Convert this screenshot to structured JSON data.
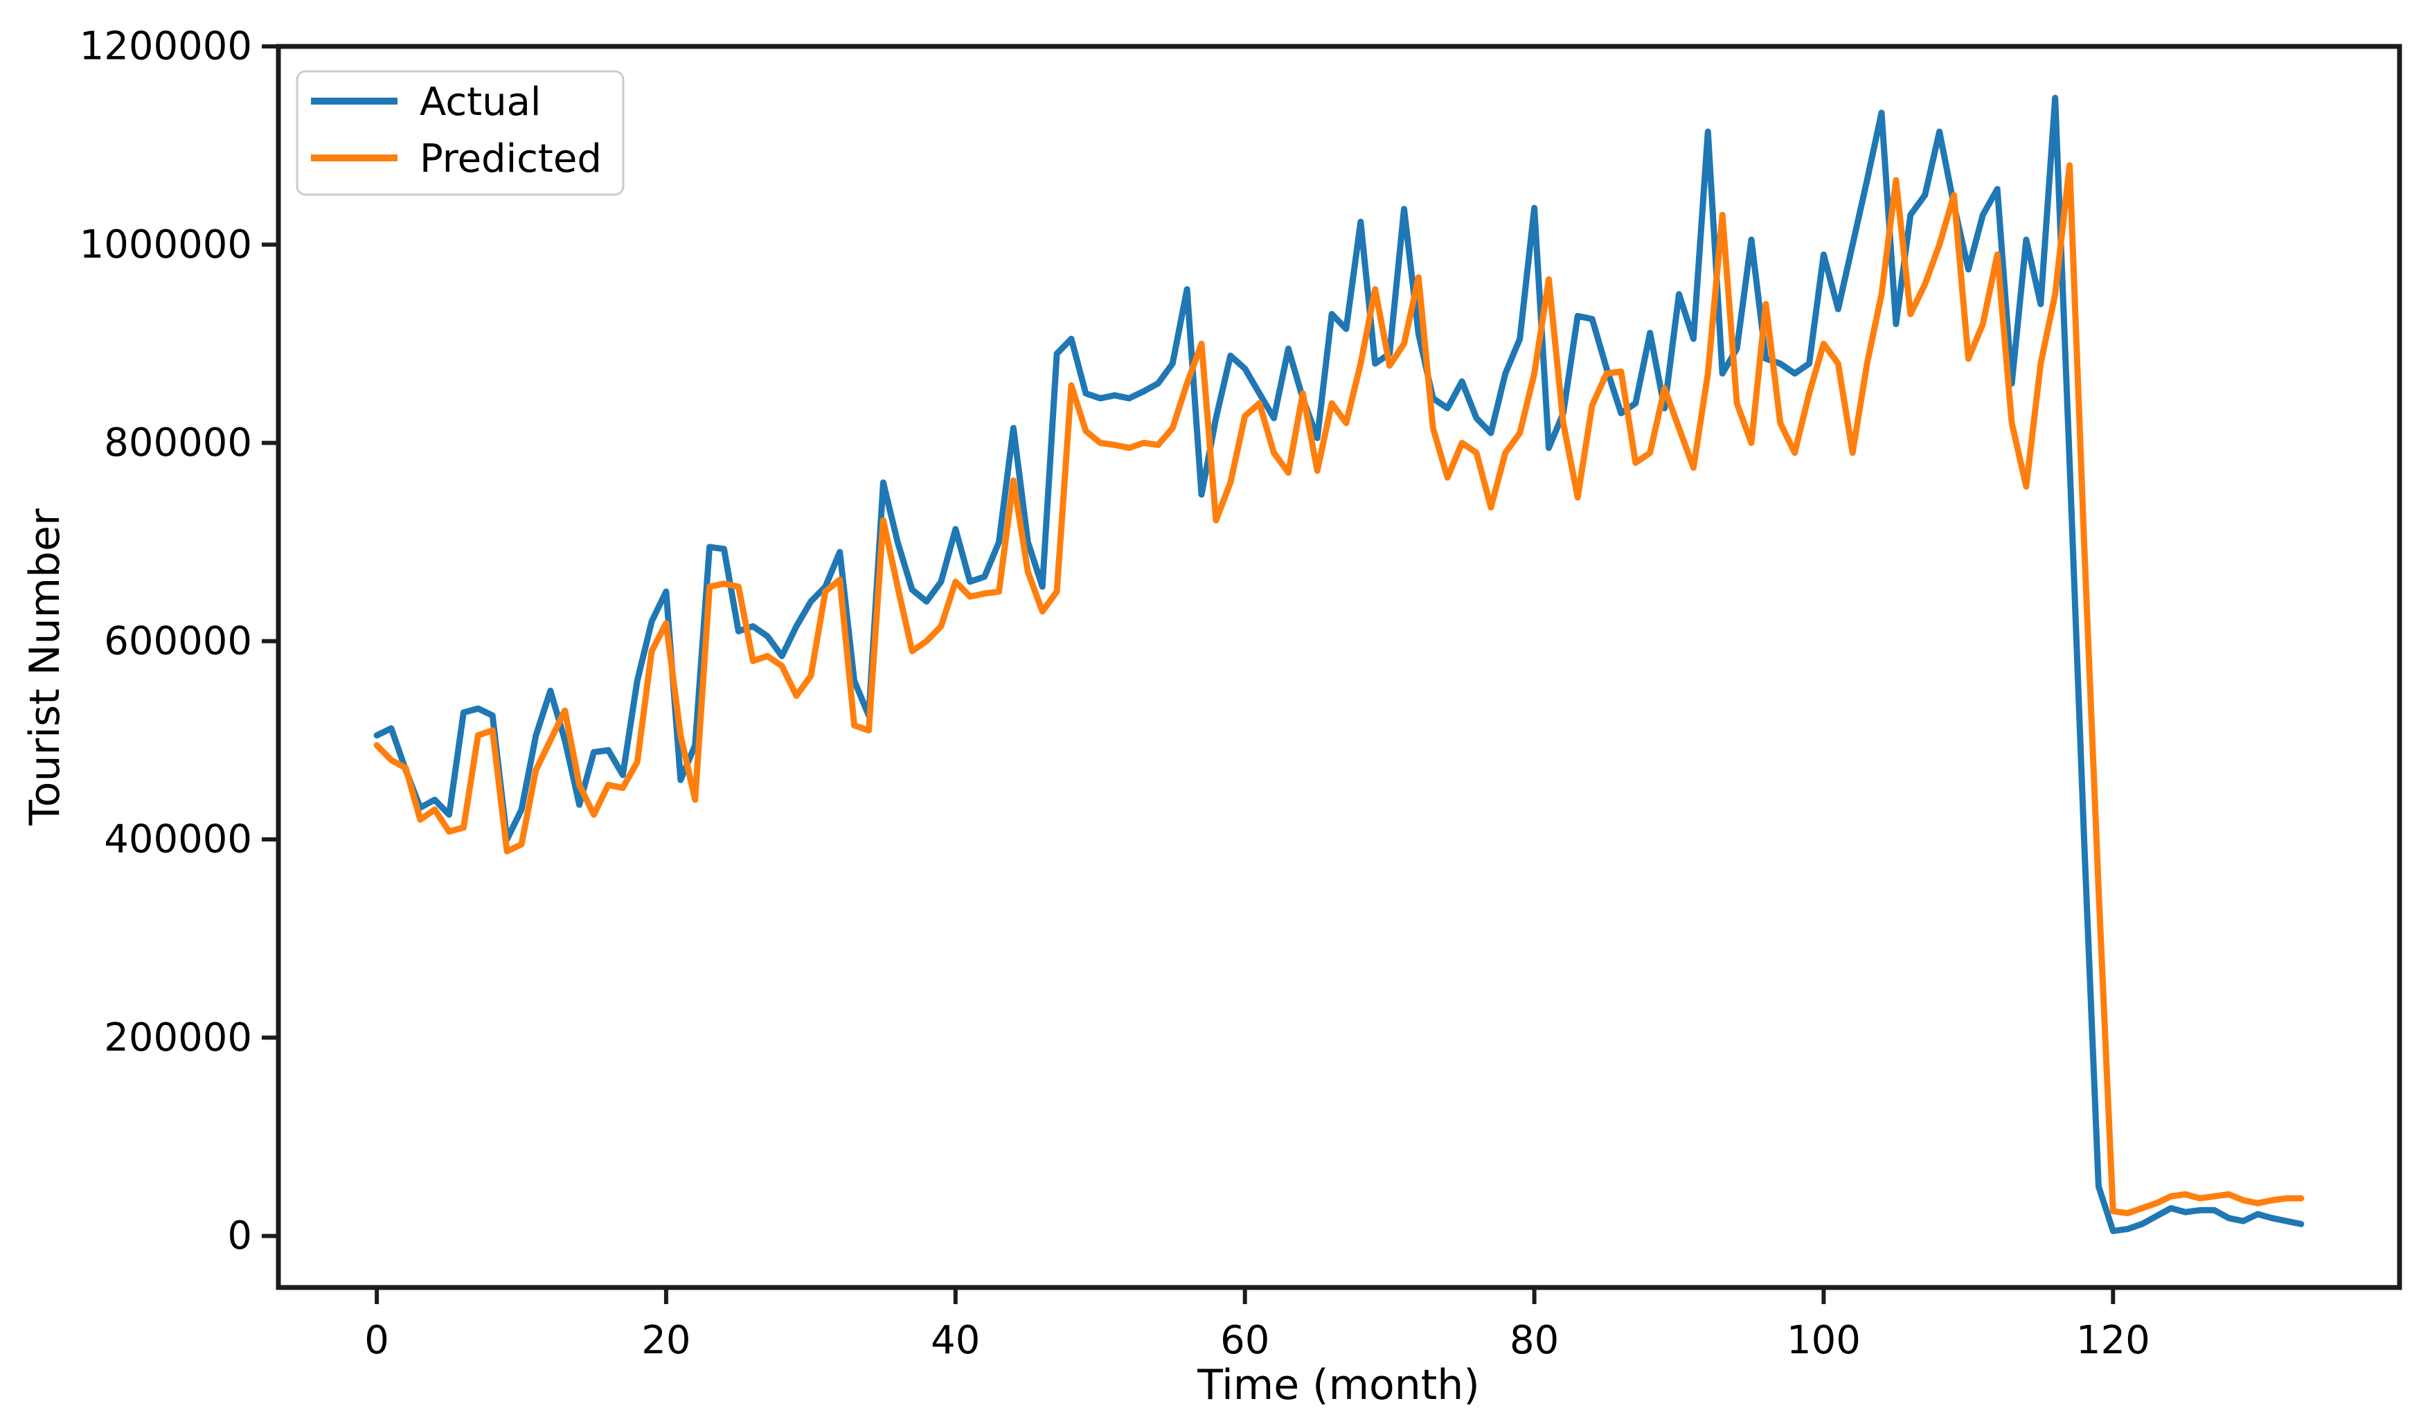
{
  "chart_data": {
    "type": "line",
    "title": "",
    "xlabel": "Time (month)",
    "ylabel": "Tourist Number",
    "xlim": [
      -6.8,
      139.8
    ],
    "ylim": [
      -52000,
      1200000
    ],
    "x_ticks": [
      0,
      20,
      40,
      60,
      80,
      100,
      120
    ],
    "y_ticks": [
      0,
      200000,
      400000,
      600000,
      800000,
      1000000,
      1200000
    ],
    "grid": false,
    "legend_position": "upper left",
    "axis_color": "#1c1c1c",
    "legend_border_color": "#cccccc",
    "x": "months 0-133, step 1",
    "series": [
      {
        "name": "Actual",
        "color": "#1f77b4",
        "values": [
          505000,
          512000,
          470000,
          432000,
          440000,
          425000,
          528000,
          532000,
          525000,
          400000,
          430000,
          505000,
          550000,
          500000,
          435000,
          488000,
          490000,
          465000,
          560000,
          620000,
          650000,
          460000,
          495000,
          695000,
          693000,
          610000,
          615000,
          605000,
          585000,
          615000,
          640000,
          655000,
          690000,
          560000,
          525000,
          760000,
          700000,
          652000,
          640000,
          660000,
          713000,
          660000,
          665000,
          700000,
          815000,
          700000,
          655000,
          890000,
          905000,
          850000,
          845000,
          848000,
          845000,
          852000,
          860000,
          880000,
          955000,
          748000,
          825000,
          888000,
          875000,
          850000,
          825000,
          895000,
          845000,
          805000,
          930000,
          915000,
          1023000,
          880000,
          890000,
          1036000,
          910000,
          845000,
          835000,
          862000,
          825000,
          810000,
          870000,
          905000,
          1037000,
          795000,
          830000,
          928000,
          925000,
          875000,
          830000,
          840000,
          911000,
          835000,
          950000,
          905000,
          1114000,
          870000,
          895000,
          1005000,
          885000,
          880000,
          870000,
          880000,
          990000,
          935000,
          1000000,
          1065000,
          1133000,
          920000,
          1030000,
          1050000,
          1114000,
          1040000,
          975000,
          1030000,
          1056000,
          860000,
          1005000,
          940000,
          1148000,
          780000,
          400000,
          50000,
          5000,
          7000,
          12000,
          20000,
          28000,
          24000,
          26000,
          26000,
          18000,
          15000,
          22000,
          18000,
          15000,
          12000
        ]
      },
      {
        "name": "Predicted",
        "color": "#ff7f0e",
        "values": [
          495000,
          480000,
          472000,
          420000,
          430000,
          408000,
          412000,
          505000,
          510000,
          388000,
          395000,
          470000,
          500000,
          530000,
          455000,
          425000,
          455000,
          452000,
          478000,
          590000,
          618000,
          505000,
          440000,
          655000,
          658000,
          655000,
          580000,
          585000,
          575000,
          545000,
          565000,
          650000,
          662000,
          515000,
          510000,
          722000,
          655000,
          590000,
          600000,
          615000,
          660000,
          645000,
          648000,
          650000,
          762000,
          670000,
          630000,
          650000,
          858000,
          812000,
          800000,
          798000,
          795000,
          800000,
          798000,
          815000,
          860000,
          900000,
          722000,
          760000,
          827000,
          840000,
          790000,
          770000,
          850000,
          772000,
          840000,
          820000,
          880000,
          955000,
          878000,
          900000,
          967000,
          815000,
          765000,
          800000,
          790000,
          735000,
          790000,
          810000,
          870000,
          965000,
          820000,
          745000,
          838000,
          870000,
          872000,
          780000,
          790000,
          855000,
          815000,
          775000,
          870000,
          1030000,
          840000,
          800000,
          940000,
          820000,
          790000,
          850000,
          900000,
          880000,
          790000,
          880000,
          950000,
          1065000,
          930000,
          960000,
          1000000,
          1050000,
          885000,
          920000,
          990000,
          820000,
          756000,
          880000,
          950000,
          1080000,
          700000,
          350000,
          25000,
          23000,
          28000,
          33000,
          40000,
          42000,
          38000,
          40000,
          42000,
          36000,
          33000,
          36000,
          38000,
          38000
        ]
      }
    ]
  }
}
